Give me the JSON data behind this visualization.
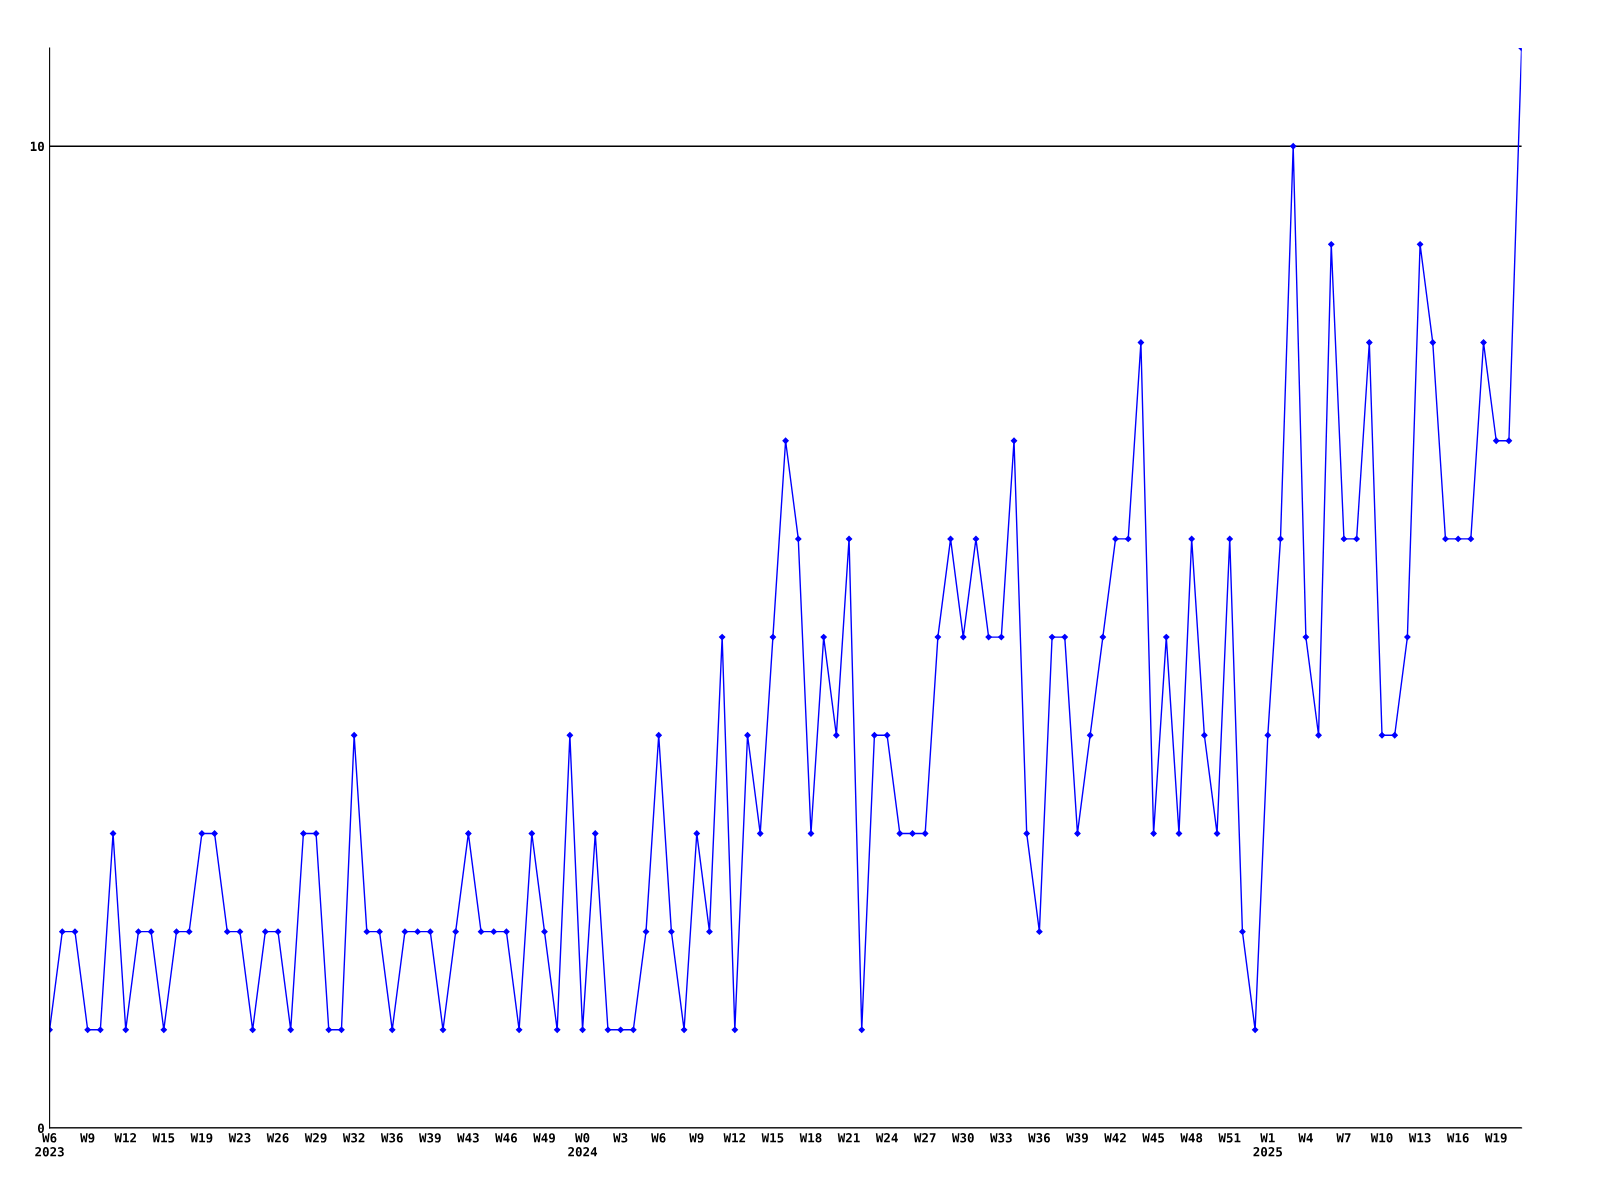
{
  "chart_data": {
    "type": "line",
    "categories": [
      "W6\n2023",
      null,
      null,
      "W9",
      null,
      null,
      "W12",
      null,
      null,
      "W15",
      null,
      null,
      "W19",
      null,
      null,
      "W23",
      null,
      null,
      "W26",
      null,
      null,
      "W29",
      null,
      null,
      "W32",
      null,
      null,
      "W36",
      null,
      null,
      "W39",
      null,
      null,
      "W43",
      null,
      null,
      "W46",
      null,
      null,
      "W49",
      null,
      null,
      "W0\n2024",
      null,
      null,
      "W3",
      null,
      null,
      "W6",
      null,
      null,
      "W9",
      null,
      null,
      "W12",
      null,
      null,
      "W15",
      null,
      null,
      "W18",
      null,
      null,
      "W21",
      null,
      null,
      "W24",
      null,
      null,
      "W27",
      null,
      null,
      "W30",
      null,
      null,
      "W33",
      null,
      null,
      "W36",
      null,
      null,
      "W39",
      null,
      null,
      "W42",
      null,
      null,
      "W45",
      null,
      null,
      "W48",
      null,
      null,
      "W51",
      null,
      null,
      "W1\n2025",
      null,
      null,
      "W4",
      null,
      null,
      "W7",
      null,
      null,
      "W10",
      null,
      null,
      "W13",
      null,
      null,
      "W16",
      null,
      null,
      "W19",
      null,
      null
    ],
    "series": [
      {
        "color": "#0000ff",
        "values": [
          1,
          2,
          2,
          1,
          1,
          3,
          1,
          2,
          2,
          1,
          2,
          2,
          3,
          3,
          2,
          2,
          1,
          2,
          2,
          1,
          3,
          3,
          1,
          1,
          4,
          2,
          2,
          1,
          2,
          2,
          2,
          1,
          2,
          3,
          2,
          2,
          2,
          1,
          3,
          2,
          1,
          4,
          1,
          3,
          1,
          1,
          1,
          2,
          4,
          2,
          1,
          3,
          2,
          5,
          1,
          4,
          3,
          5,
          7,
          6,
          3,
          5,
          4,
          6,
          1,
          4,
          4,
          3,
          3,
          3,
          5,
          6,
          5,
          6,
          5,
          5,
          7,
          3,
          2,
          5,
          5,
          3,
          4,
          5,
          6,
          6,
          8,
          3,
          5,
          3,
          6,
          4,
          3,
          6,
          2,
          1,
          4,
          6,
          10,
          5,
          4,
          9,
          6,
          6,
          8,
          4,
          4,
          5,
          9,
          8,
          6,
          6,
          6,
          8,
          7,
          7,
          11
        ]
      }
    ],
    "ylim": [
      0,
      11
    ],
    "yticks": [
      0,
      10
    ],
    "grid": "y",
    "marker": "diamond",
    "line_style": "solid"
  }
}
